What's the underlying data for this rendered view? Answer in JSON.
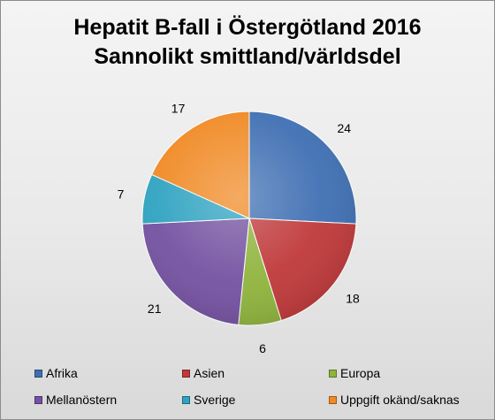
{
  "chart_data": {
    "type": "pie",
    "title": "Hepatit B-fall i Östergötland 2016",
    "subtitle": "Sannolikt smittland/världsdel",
    "categories": [
      "Afrika",
      "Asien",
      "Europa",
      "Mellanöstern",
      "Sverige",
      "Uppgift okänd/saknas"
    ],
    "values": [
      24,
      18,
      6,
      21,
      7,
      17
    ],
    "colors": [
      "#3f6fb3",
      "#c0393a",
      "#8fb43d",
      "#7452a1",
      "#2fa3c1",
      "#f08a25"
    ],
    "legend_position": "bottom"
  }
}
